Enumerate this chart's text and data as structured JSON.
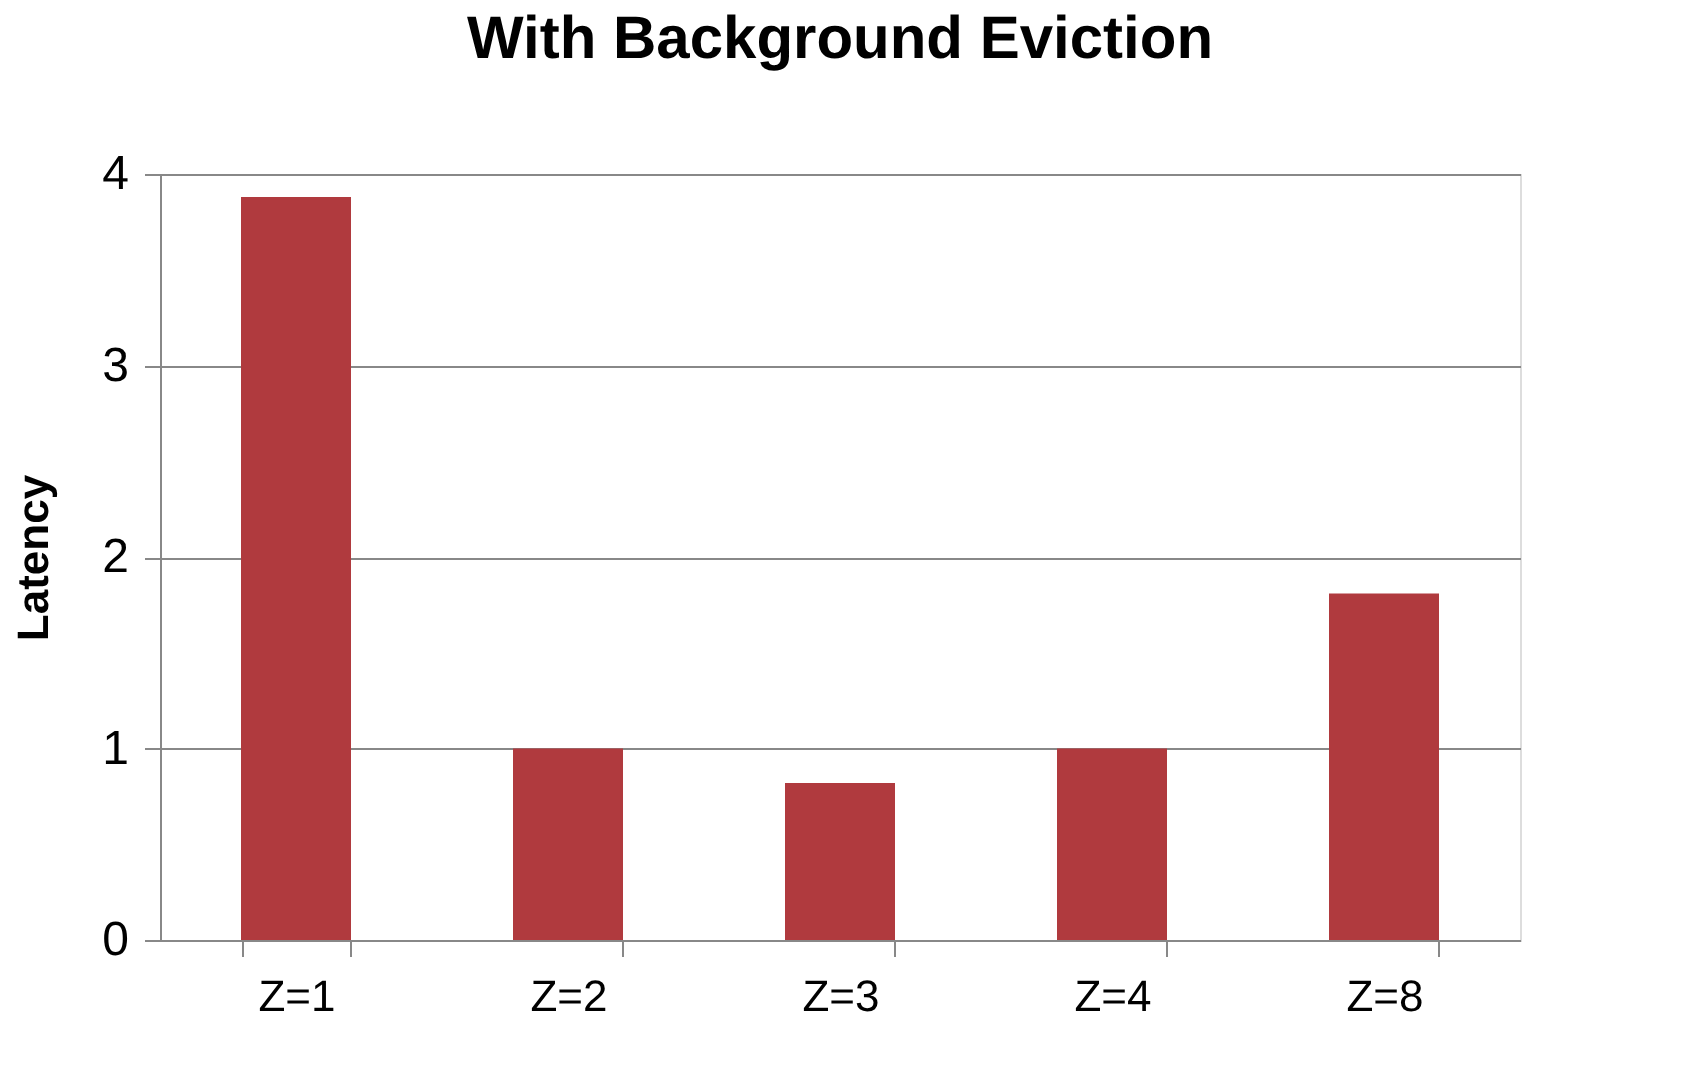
{
  "chart_data": {
    "type": "bar",
    "title": "With Background Eviction",
    "ylabel": "Latency",
    "categories": [
      "Z=1",
      "Z=2",
      "Z=3",
      "Z=4",
      "Z=8"
    ],
    "values": [
      3.88,
      1.0,
      0.82,
      1.0,
      1.81
    ],
    "color": "#b03a3e",
    "ylim": [
      0,
      4
    ],
    "yticks": [
      0,
      1,
      2,
      3,
      4
    ],
    "grid": "y"
  }
}
